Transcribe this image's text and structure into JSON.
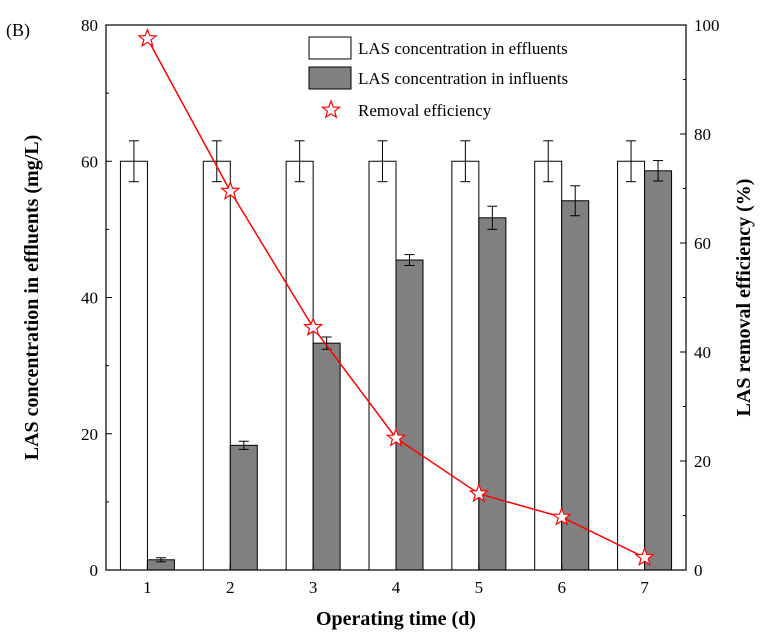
{
  "chart_data": {
    "type": "bar",
    "panel_label": "(B)",
    "xlabel": "Operating time (d)",
    "ylabel_left": "LAS concentration in effluents (mg/L)",
    "ylabel_right": "LAS removal efficiency (%)",
    "categories": [
      "1",
      "2",
      "3",
      "4",
      "5",
      "6",
      "7"
    ],
    "ylim_left": [
      0,
      80
    ],
    "ylim_right": [
      0,
      100
    ],
    "yticks_left": [
      "0",
      "20",
      "40",
      "60",
      "80"
    ],
    "yticks_right": [
      "0",
      "20",
      "40",
      "60",
      "80",
      "100"
    ],
    "series": [
      {
        "name": "LAS concentration in effluents",
        "kind": "bar",
        "axis": "left",
        "color": "#ffffff",
        "values": [
          60,
          60,
          60,
          60,
          60,
          60,
          60
        ],
        "errors": [
          3,
          3,
          3,
          3,
          3,
          3,
          3
        ]
      },
      {
        "name": "LAS concentration in influents",
        "kind": "bar",
        "axis": "left",
        "color": "#808080",
        "values": [
          1.5,
          18.3,
          33.3,
          45.5,
          51.7,
          54.2,
          58.6
        ],
        "errors": [
          0.3,
          0.6,
          0.9,
          0.8,
          1.7,
          2.2,
          1.5
        ]
      },
      {
        "name": "Removal efficiency",
        "kind": "line",
        "axis": "right",
        "color": "#ff0000",
        "values": [
          97.5,
          69.5,
          44.5,
          24.2,
          14.0,
          9.7,
          2.3
        ]
      }
    ],
    "legend_position": "top-right",
    "grid": false
  }
}
